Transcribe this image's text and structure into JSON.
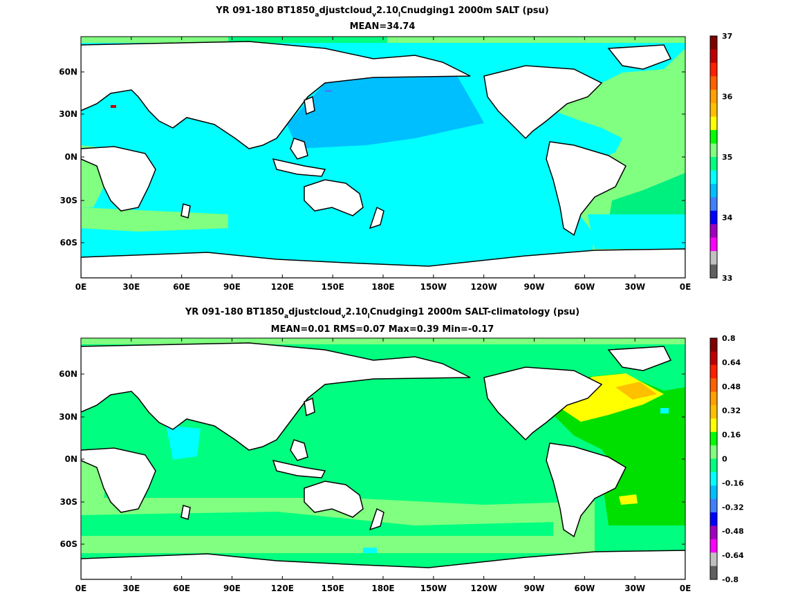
{
  "colors": {
    "land": "#ffffff",
    "coast": "#000000",
    "ocean_top": "#00ffff",
    "ocean_top_npac": "#00bfff",
    "ocean_top_atl": "#80ff80",
    "ocean_top_atl_core": "#00f080",
    "ocean_bot": "#00ff80",
    "ocean_bot_south": "#80ff80",
    "ocean_bot_natl": "#ffff00",
    "ocean_bot_natl_orange": "#ffc000",
    "ocean_bot_green": "#00e000"
  },
  "maps": [
    {
      "title_parts": [
        "YR 091-180 BT1850",
        "a",
        "djustcloud",
        "v",
        "2.10",
        "l",
        "Cnudging1 2000m SALT (psu)"
      ],
      "stats": "MEAN=34.74",
      "x_ticks": [
        "0E",
        "30E",
        "60E",
        "90E",
        "120E",
        "150E",
        "180E",
        "150W",
        "120W",
        "90W",
        "60W",
        "30W",
        "0E"
      ],
      "y_ticks": [
        "60N",
        "30N",
        "0N",
        "30S",
        "60S"
      ],
      "colorbar": {
        "labels": [
          "37",
          "36",
          "35",
          "34",
          "33"
        ],
        "colors": [
          "#800000",
          "#c00000",
          "#ff2000",
          "#ff6000",
          "#ffa000",
          "#ffc000",
          "#ffff00",
          "#00ff00",
          "#80ff80",
          "#00ff80",
          "#00ffff",
          "#00bfff",
          "#4080ff",
          "#0000ff",
          "#a000c0",
          "#ff00ff",
          "#c0c0c0",
          "#606060"
        ]
      }
    },
    {
      "title_parts": [
        "YR 091-180 BT1850",
        "a",
        "djustcloud",
        "v",
        "2.10",
        "l",
        "Cnudging1 2000m SALT-climatology (psu)"
      ],
      "stats": "MEAN=0.01    RMS=0.07    Max=0.39    Min=-0.17",
      "x_ticks": [
        "0E",
        "30E",
        "60E",
        "90E",
        "120E",
        "150E",
        "180E",
        "150W",
        "120W",
        "90W",
        "60W",
        "30W",
        "0E"
      ],
      "y_ticks": [
        "60N",
        "30N",
        "0N",
        "30S",
        "60S"
      ],
      "colorbar": {
        "labels": [
          "0.8",
          "0.64",
          "0.48",
          "0.32",
          "0.16",
          "0",
          "-0.16",
          "-0.32",
          "-0.48",
          "-0.64",
          "-0.8"
        ],
        "colors": [
          "#800000",
          "#c00000",
          "#ff2000",
          "#ff6000",
          "#ffa000",
          "#ffc000",
          "#ffff00",
          "#00ff00",
          "#80ff80",
          "#00ff80",
          "#00ffff",
          "#00bfff",
          "#4080ff",
          "#0000ff",
          "#a000c0",
          "#ff00ff",
          "#c0c0c0",
          "#606060"
        ]
      }
    }
  ]
}
